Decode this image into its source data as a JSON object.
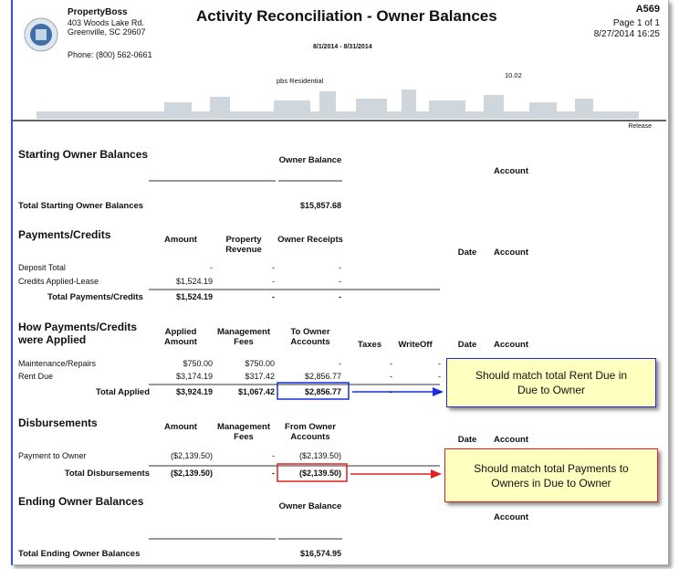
{
  "header": {
    "company": [
      "PropertyBoss",
      "403 Woods Lake Rd.",
      "Greenville, SC  29607"
    ],
    "phone": "Phone: (800) 562-0661",
    "title": "Activity Reconciliation - Owner Balances",
    "date_range": "8/1/2014 - 8/31/2014",
    "entity": "pbs Residential",
    "version": "10.02",
    "report_id": "A569",
    "page": "Page 1 of 1",
    "printed": "8/27/2014 16:25",
    "release": "Release"
  },
  "sections": [
    {
      "title": "Starting Owner Balances",
      "columns": [
        "Owner Balance",
        "Account"
      ],
      "rows": [
        {
          "label": "Total Starting Owner Balances",
          "cells": [
            "$15,857.68"
          ]
        }
      ]
    },
    {
      "title": "Payments/Credits",
      "columns": [
        "Amount",
        "Property Revenue",
        "Owner Receipts",
        "Date",
        "Account"
      ],
      "rows": [
        {
          "label": "Deposit Total",
          "cells": [
            "-",
            "-",
            "-"
          ]
        },
        {
          "label": "Credits Applied-Lease",
          "cells": [
            "$1,524.19",
            "-",
            "-"
          ]
        },
        {
          "label": "Total Payments/Credits",
          "cells": [
            "$1,524.19",
            "-",
            "-"
          ]
        }
      ]
    },
    {
      "title": "How Payments/Credits were Applied",
      "columns": [
        "Applied Amount",
        "Management Fees",
        "To Owner Accounts",
        "Taxes",
        "WriteOff",
        "Date",
        "Account"
      ],
      "rows": [
        {
          "label": "Maintenance/Repairs",
          "cells": [
            "$750.00",
            "$750.00",
            "-",
            "-",
            "-"
          ]
        },
        {
          "label": "Rent Due",
          "cells": [
            "$3,174.19",
            "$317.42",
            "$2,856.77",
            "-",
            "-"
          ]
        },
        {
          "label": "Total Applied",
          "cells": [
            "$3,924.19",
            "$1,067.42",
            "$2,856.77",
            "-",
            "-"
          ]
        }
      ]
    },
    {
      "title": "Disbursements",
      "columns": [
        "Amount",
        "Management Fees",
        "From Owner Accounts",
        "Date",
        "Account"
      ],
      "rows": [
        {
          "label": "Payment to Owner",
          "cells": [
            "($2,139.50)",
            "-",
            "($2,139.50)"
          ]
        },
        {
          "label": "Total Disbursements",
          "cells": [
            "($2,139.50)",
            "-",
            "($2,139.50)"
          ]
        }
      ]
    },
    {
      "title": "Ending Owner Balances",
      "columns": [
        "Owner Balance",
        "Account"
      ],
      "rows": [
        {
          "label": "Total Ending Owner Balances",
          "cells": [
            "$16,574.95"
          ]
        }
      ]
    }
  ],
  "annotations": [
    "Should match total Rent Due in Due to Owner",
    "Should match total Payments to Owners in Due to Owner"
  ]
}
